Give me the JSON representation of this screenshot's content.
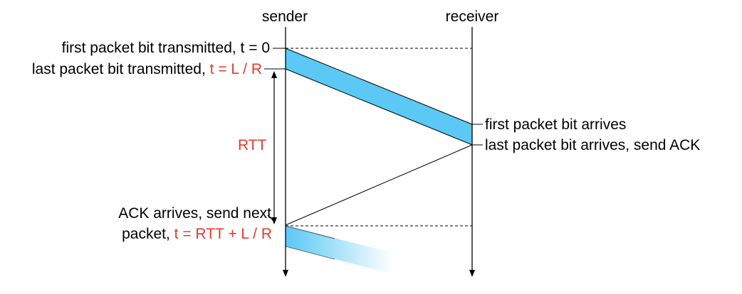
{
  "header": {
    "sender": "sender",
    "receiver": "receiver"
  },
  "labels": {
    "first_tx": "first packet bit transmitted, t = 0",
    "last_tx_prefix": "last packet bit transmitted,",
    "last_tx_time": "t = L / R",
    "first_arrives": "first packet bit arrives",
    "last_arrives": "last packet bit arrives, send ACK",
    "rtt": "RTT",
    "ack_line1": "ACK arrives, send next",
    "ack_line2_prefix": "packet,",
    "ack_line2_time": "t = RTT + L / R"
  },
  "colors": {
    "packet": "#5bc8f5",
    "highlight_text": "#e8382a",
    "line": "#000000"
  }
}
